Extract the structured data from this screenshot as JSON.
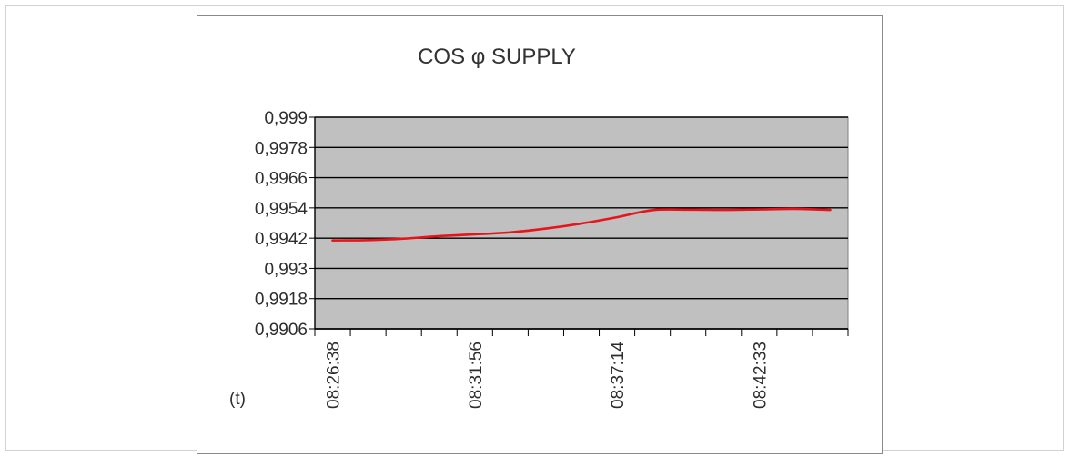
{
  "chart_data": {
    "type": "line",
    "title": "COS φ SUPPLY",
    "xlabel": "(t)",
    "ylabel": "",
    "ylim": [
      0.9906,
      0.999
    ],
    "y_ticks": [
      "0,999",
      "0,9978",
      "0,9966",
      "0,9954",
      "0,9942",
      "0,993",
      "0,9918",
      "0,9906"
    ],
    "y_tick_values": [
      0.999,
      0.9978,
      0.9966,
      0.9954,
      0.9942,
      0.993,
      0.9918,
      0.9906
    ],
    "x_labels": [
      "08:26:38",
      "08:31:56",
      "08:37:14",
      "08:42:33"
    ],
    "x_label_index": [
      0,
      4,
      8,
      12
    ],
    "x_tick_count": 15,
    "grid": true,
    "plot_background": "#c0c0c0",
    "series": [
      {
        "color": "#e8141c",
        "values": [
          0.99411,
          0.99412,
          0.99418,
          0.99428,
          0.99435,
          0.99443,
          0.99458,
          0.99478,
          0.99503,
          0.99531,
          0.99533,
          0.99532,
          0.99534,
          0.99536,
          0.99532
        ]
      }
    ]
  }
}
